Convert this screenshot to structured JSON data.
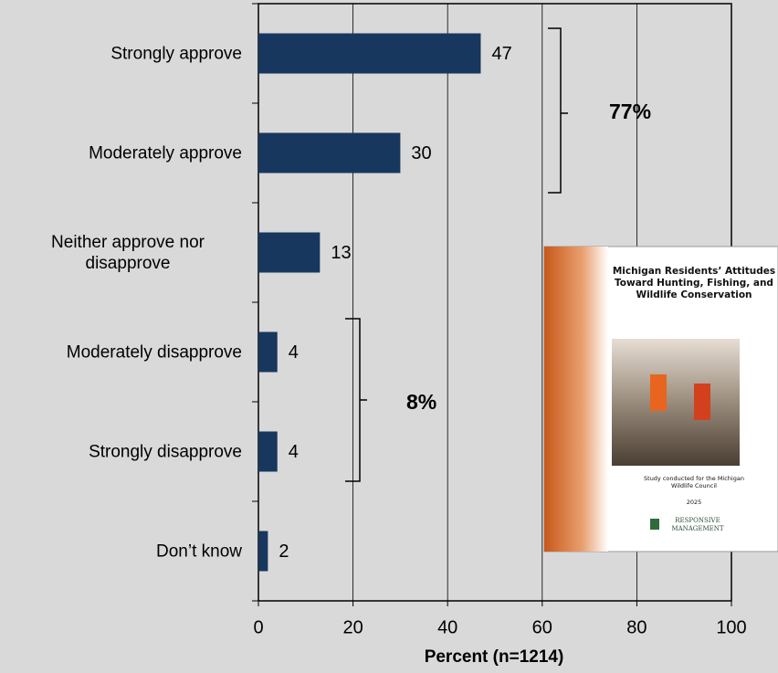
{
  "chart_data": {
    "type": "bar",
    "orientation": "horizontal",
    "categories": [
      "Strongly approve",
      "Moderately approve",
      "Neither approve nor disapprove",
      "Moderately disapprove",
      "Strongly disapprove",
      "Don’t know"
    ],
    "values": [
      47,
      30,
      13,
      4,
      4,
      2
    ],
    "color": "#17375e",
    "xlim": [
      0,
      100
    ],
    "xticks": [
      0,
      20,
      40,
      60,
      80,
      100
    ],
    "grid": true,
    "xlabel": "Percent (n=1214)",
    "annotations": [
      "77%",
      "8%"
    ],
    "inset": {
      "title": "Michigan Residents’ Attitudes Toward Hunting, Fishing, and Wildlife Conservation",
      "note": "Study conducted for the Michigan Wildlife Council",
      "year": "2025",
      "logo_top": "RESPONSIVE",
      "logo_bottom": "MANAGEMENT"
    }
  }
}
